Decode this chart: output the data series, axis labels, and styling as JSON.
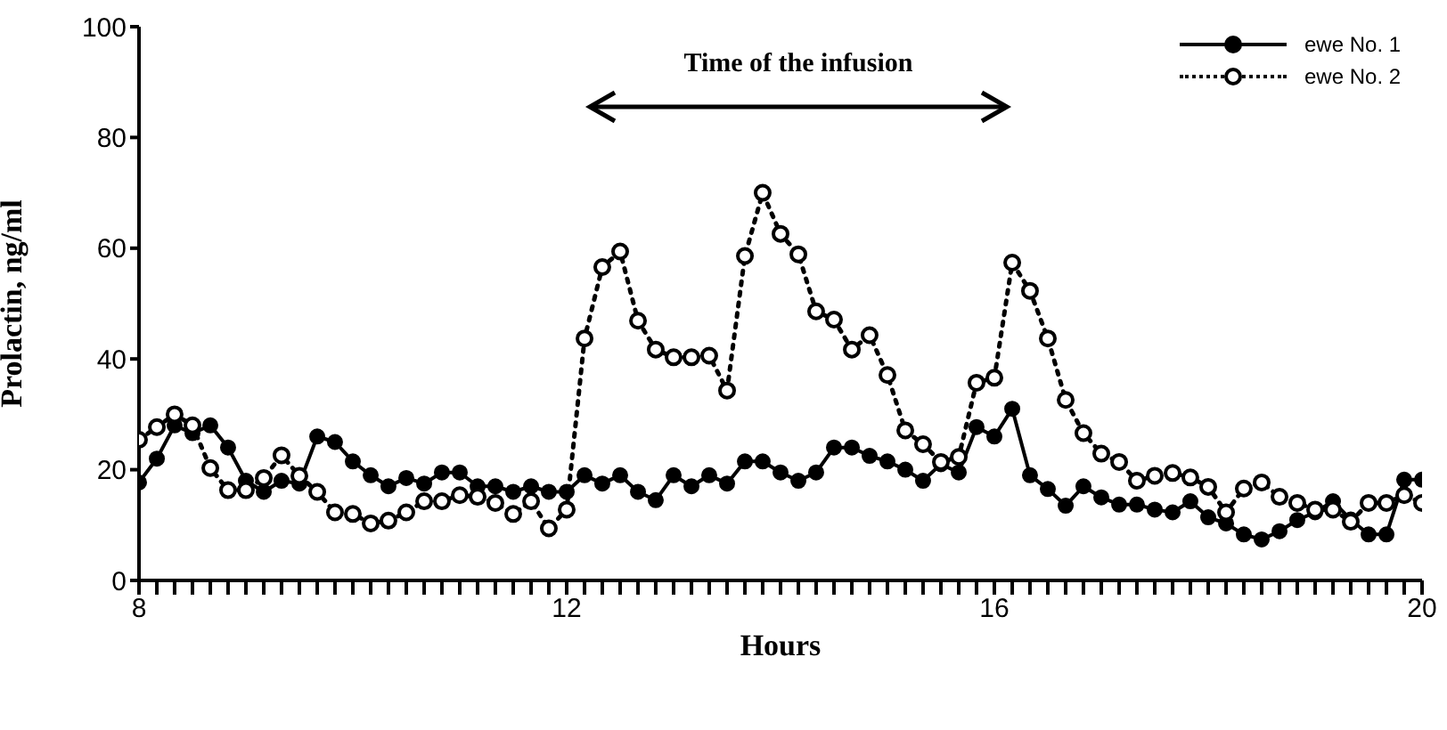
{
  "chart_data": {
    "type": "line",
    "xlabel": "Hours",
    "ylabel": "Prolactin, ng/ml",
    "x": [
      8,
      8.167,
      8.333,
      8.5,
      8.667,
      8.833,
      9,
      9.167,
      9.333,
      9.5,
      9.667,
      9.833,
      10,
      10.167,
      10.333,
      10.5,
      10.667,
      10.833,
      11,
      11.167,
      11.333,
      11.5,
      11.667,
      11.833,
      12,
      12.167,
      12.333,
      12.5,
      12.667,
      12.833,
      13,
      13.167,
      13.333,
      13.5,
      13.667,
      13.833,
      14,
      14.167,
      14.333,
      14.5,
      14.667,
      14.833,
      15,
      15.167,
      15.333,
      15.5,
      15.667,
      15.833,
      16,
      16.167,
      16.333,
      16.5,
      16.667,
      16.833,
      17,
      17.167,
      17.333,
      17.5,
      17.667,
      17.833,
      18,
      18.167,
      18.333,
      18.5,
      18.667,
      18.833,
      19,
      19.167,
      19.333,
      19.5,
      19.667,
      19.833,
      20
    ],
    "series": [
      {
        "name": "ewe No. 1",
        "color": "#000000",
        "marker": "circle",
        "line_style": "solid",
        "values": [
          17.7,
          22,
          28,
          26.6,
          28,
          24,
          18,
          16,
          18,
          17.5,
          26,
          25,
          21.5,
          19,
          17,
          18.5,
          17.5,
          19.5,
          19.5,
          17,
          17,
          16,
          17,
          16,
          16,
          19,
          17.5,
          19,
          16,
          14.5,
          19,
          17,
          19,
          17.5,
          21.5,
          21.5,
          19.5,
          18,
          19.5,
          24,
          24,
          22.5,
          21.5,
          20,
          18,
          21,
          19.5,
          27.7,
          26,
          31,
          19,
          16.5,
          13.5,
          17,
          15,
          13.7,
          13.7,
          12.8,
          12.3,
          14.3,
          11.4,
          10.3,
          8.3,
          7.4,
          8.9,
          10.9,
          12.3,
          14.3,
          11,
          8.3,
          8.3,
          18.2,
          18.2
        ]
      },
      {
        "name": "ewe No. 2",
        "color": "#000000",
        "marker": "circle",
        "line_style": "dotted",
        "values": [
          25.4,
          27.7,
          30,
          28,
          20.3,
          16.3,
          16.3,
          18.5,
          22.6,
          18.9,
          16,
          12.3,
          12,
          10.3,
          10.8,
          12.3,
          14.3,
          14.3,
          15.4,
          15.1,
          14,
          12,
          14.3,
          9.4,
          12.8,
          43.7,
          56.6,
          59.4,
          46.9,
          41.7,
          40.3,
          40.3,
          40.6,
          34.3,
          58.6,
          70,
          62.6,
          58.9,
          48.6,
          47.1,
          41.7,
          44.3,
          37.1,
          27.1,
          24.6,
          21.4,
          22.3,
          35.7,
          36.6,
          57.4,
          52.3,
          43.7,
          32.6,
          26.6,
          22.9,
          21.4,
          18,
          18.9,
          19.4,
          18.6,
          16.9,
          12.3,
          16.6,
          17.7,
          15.1,
          14,
          12.8,
          12.8,
          10.6,
          14,
          14,
          15.4,
          14
        ]
      }
    ],
    "xlim": [
      8,
      20
    ],
    "xticks": [
      8,
      {
        "value": 8.167,
        "label": null
      },
      {
        "value": 8.333,
        "label": null
      },
      {
        "value": 8.5,
        "label": null
      },
      {
        "value": 8.667,
        "label": null
      },
      {
        "value": 8.833,
        "label": null
      },
      {
        "value": 9,
        "label": null
      },
      {
        "value": 9.167,
        "label": null
      },
      {
        "value": 9.333,
        "label": null
      },
      {
        "value": 9.5,
        "label": null
      },
      {
        "value": 9.667,
        "label": null
      },
      {
        "value": 9.833,
        "label": null
      },
      {
        "value": 10,
        "label": null
      },
      {
        "value": 10.167,
        "label": null
      },
      {
        "value": 10.333,
        "label": null
      },
      {
        "value": 10.5,
        "label": null
      },
      {
        "value": 10.667,
        "label": null
      },
      {
        "value": 10.833,
        "label": null
      },
      {
        "value": 11,
        "label": null
      },
      {
        "value": 11.167,
        "label": null
      },
      {
        "value": 11.333,
        "label": null
      },
      {
        "value": 11.5,
        "label": null
      },
      {
        "value": 11.667,
        "label": null
      },
      {
        "value": 11.833,
        "label": null
      },
      12,
      {
        "value": 12.167,
        "label": null
      },
      {
        "value": 12.333,
        "label": null
      },
      {
        "value": 12.5,
        "label": null
      },
      {
        "value": 12.667,
        "label": null
      },
      {
        "value": 12.833,
        "label": null
      },
      {
        "value": 13,
        "label": null
      },
      {
        "value": 13.167,
        "label": null
      },
      {
        "value": 13.333,
        "label": null
      },
      {
        "value": 13.5,
        "label": null
      },
      {
        "value": 13.667,
        "label": null
      },
      {
        "value": 13.833,
        "label": null
      },
      {
        "value": 14,
        "label": null
      },
      {
        "value": 14.167,
        "label": null
      },
      {
        "value": 14.333,
        "label": null
      },
      {
        "value": 14.5,
        "label": null
      },
      {
        "value": 14.667,
        "label": null
      },
      {
        "value": 14.833,
        "label": null
      },
      {
        "value": 15,
        "label": null
      },
      {
        "value": 15.167,
        "label": null
      },
      {
        "value": 15.333,
        "label": null
      },
      {
        "value": 15.5,
        "label": null
      },
      {
        "value": 15.667,
        "label": null
      },
      {
        "value": 15.833,
        "label": null
      },
      16,
      {
        "value": 16.167,
        "label": null
      },
      {
        "value": 16.333,
        "label": null
      },
      {
        "value": 16.5,
        "label": null
      },
      {
        "value": 16.667,
        "label": null
      },
      {
        "value": 16.833,
        "label": null
      },
      {
        "value": 17,
        "label": null
      },
      {
        "value": 17.167,
        "label": null
      },
      {
        "value": 17.333,
        "label": null
      },
      {
        "value": 17.5,
        "label": null
      },
      {
        "value": 17.667,
        "label": null
      },
      {
        "value": 17.833,
        "label": null
      },
      {
        "value": 18,
        "label": null
      },
      {
        "value": 18.167,
        "label": null
      },
      {
        "value": 18.333,
        "label": null
      },
      {
        "value": 18.5,
        "label": null
      },
      {
        "value": 18.667,
        "label": null
      },
      {
        "value": 18.833,
        "label": null
      },
      {
        "value": 19,
        "label": null
      },
      {
        "value": 19.167,
        "label": null
      },
      {
        "value": 19.333,
        "label": null
      },
      {
        "value": 19.5,
        "label": null
      },
      {
        "value": 19.667,
        "label": null
      },
      {
        "value": 19.833,
        "label": null
      },
      20
    ],
    "ylim": [
      0,
      100
    ],
    "yticks": [
      0,
      20,
      40,
      60,
      80,
      100
    ],
    "annotations": [
      "Time of the infusion"
    ],
    "grid": false,
    "legend": "top right"
  }
}
